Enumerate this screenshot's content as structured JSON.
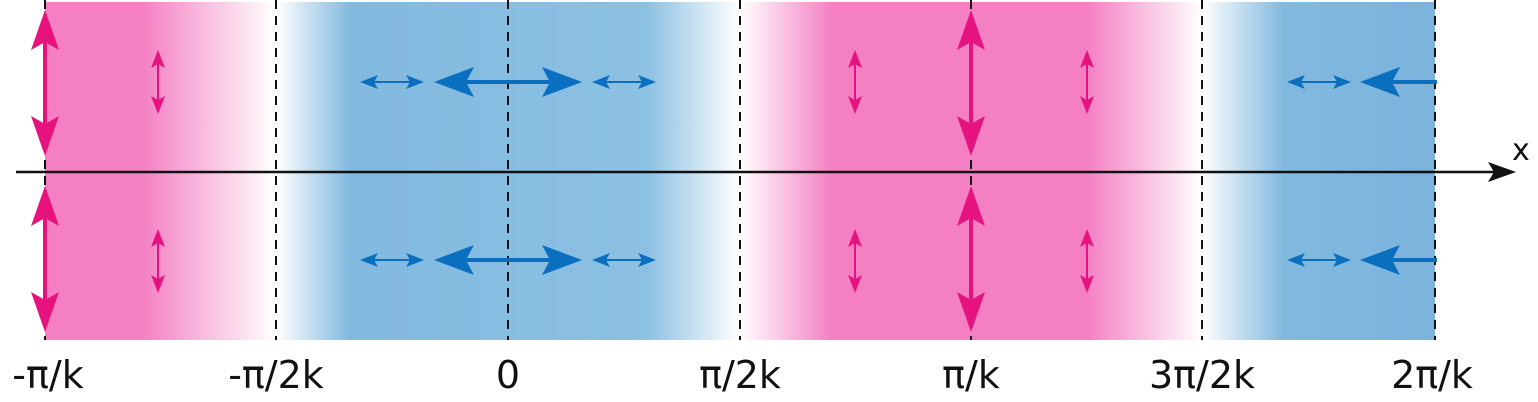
{
  "diagram": {
    "axis_label": "x",
    "tick_labels": [
      "-π/k",
      "-π/2k",
      "0",
      "π/2k",
      "π/k",
      "3π/2k",
      "2π/k"
    ],
    "colors": {
      "pink": "#f47fc3",
      "blue": "#82b9df",
      "pink_arrow": "#e6137f",
      "blue_arrow": "#0a6fbf",
      "line": "#111111"
    },
    "field_pattern": "transverse (vertical) displacement arrows in pink regions, longitudinal (horizontal) arrows in blue regions"
  }
}
